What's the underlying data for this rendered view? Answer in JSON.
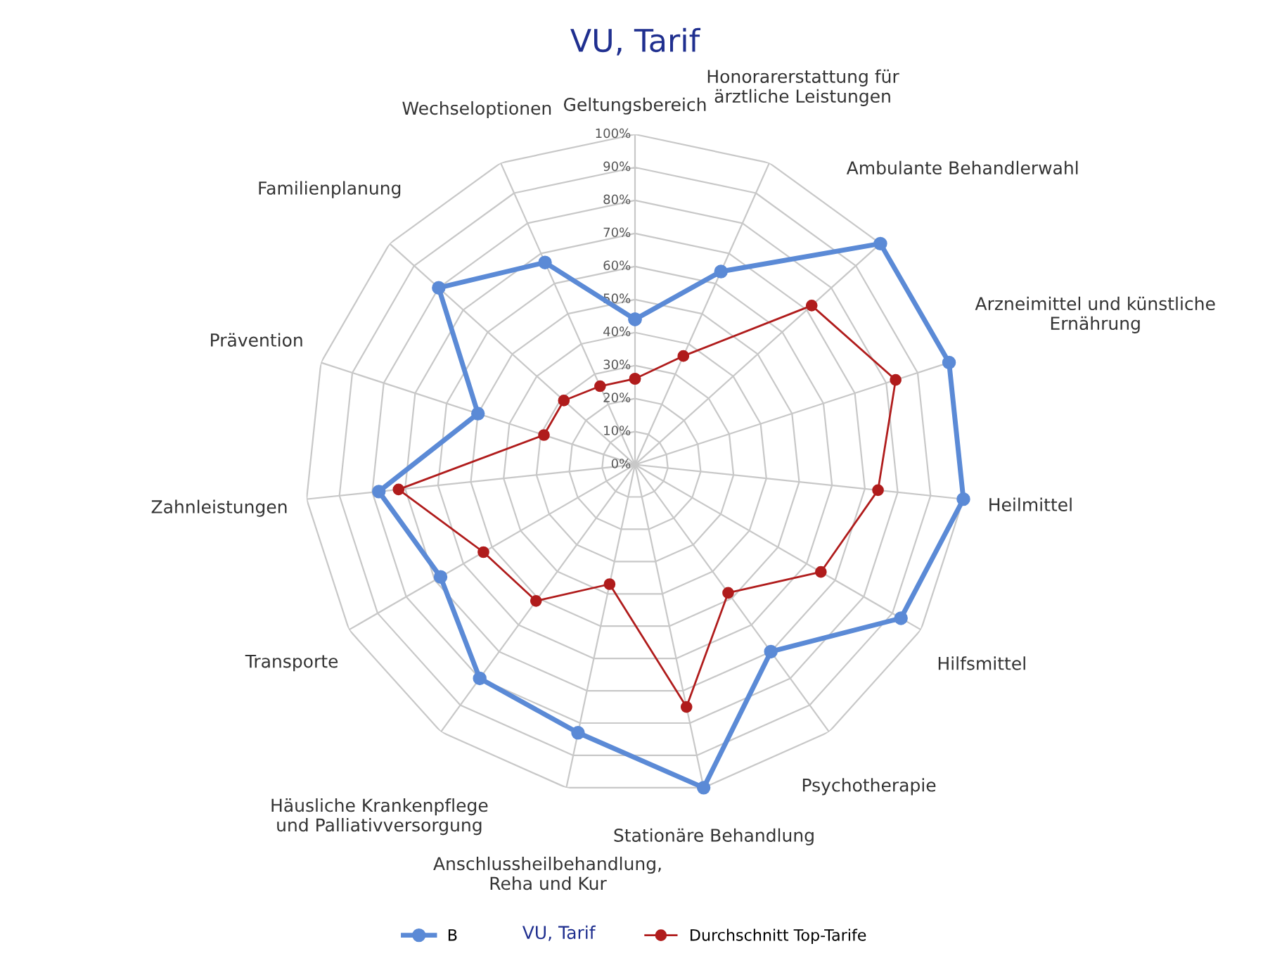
{
  "chart_data": {
    "type": "radar",
    "title": "VU, Tarif",
    "categories": [
      "Geltungsbereich",
      "Honorarerstattung für\närztliche Leistungen",
      "Ambulante Behandlerwahl",
      "Arzneimittel und künstliche\nErnährung",
      "Heilmittel",
      "Hilfsmittel",
      "Psychotherapie",
      "Stationäre Behandlung",
      "Anschlussheilbehandlung,\nReha und Kur",
      "Häusliche Krankenpflege\nund Palliativversorgung",
      "Transporte",
      "Zahnleistungen",
      "Prävention",
      "Familienplanung",
      "Wechseloptionen"
    ],
    "series": [
      {
        "name": "B",
        "color": "#5b8ad6",
        "values": [
          44,
          64,
          100,
          100,
          100,
          93,
          70,
          100,
          83,
          80,
          68,
          78,
          50,
          80,
          67
        ]
      },
      {
        "name": "Durchschnitt Top-Tarife",
        "color": "#b01c1c",
        "values": [
          26,
          36,
          72,
          83,
          74,
          65,
          48,
          75,
          37,
          51,
          53,
          72,
          29,
          29,
          26
        ]
      }
    ],
    "ylim": [
      0,
      100
    ],
    "yticks": [
      {
        "value": 0,
        "label": "0%"
      },
      {
        "value": 10,
        "label": "10%"
      },
      {
        "value": 20,
        "label": "20%"
      },
      {
        "value": 30,
        "label": "30%"
      },
      {
        "value": 40,
        "label": "40%"
      },
      {
        "value": 50,
        "label": "50%"
      },
      {
        "value": 60,
        "label": "60%"
      },
      {
        "value": 70,
        "label": "70%"
      },
      {
        "value": 80,
        "label": "80%"
      },
      {
        "value": 90,
        "label": "90%"
      },
      {
        "value": 100,
        "label": "100%"
      }
    ],
    "grid": true,
    "legend": "bottom",
    "marker": "circle",
    "annotations": [
      "VU, Tarif"
    ]
  }
}
